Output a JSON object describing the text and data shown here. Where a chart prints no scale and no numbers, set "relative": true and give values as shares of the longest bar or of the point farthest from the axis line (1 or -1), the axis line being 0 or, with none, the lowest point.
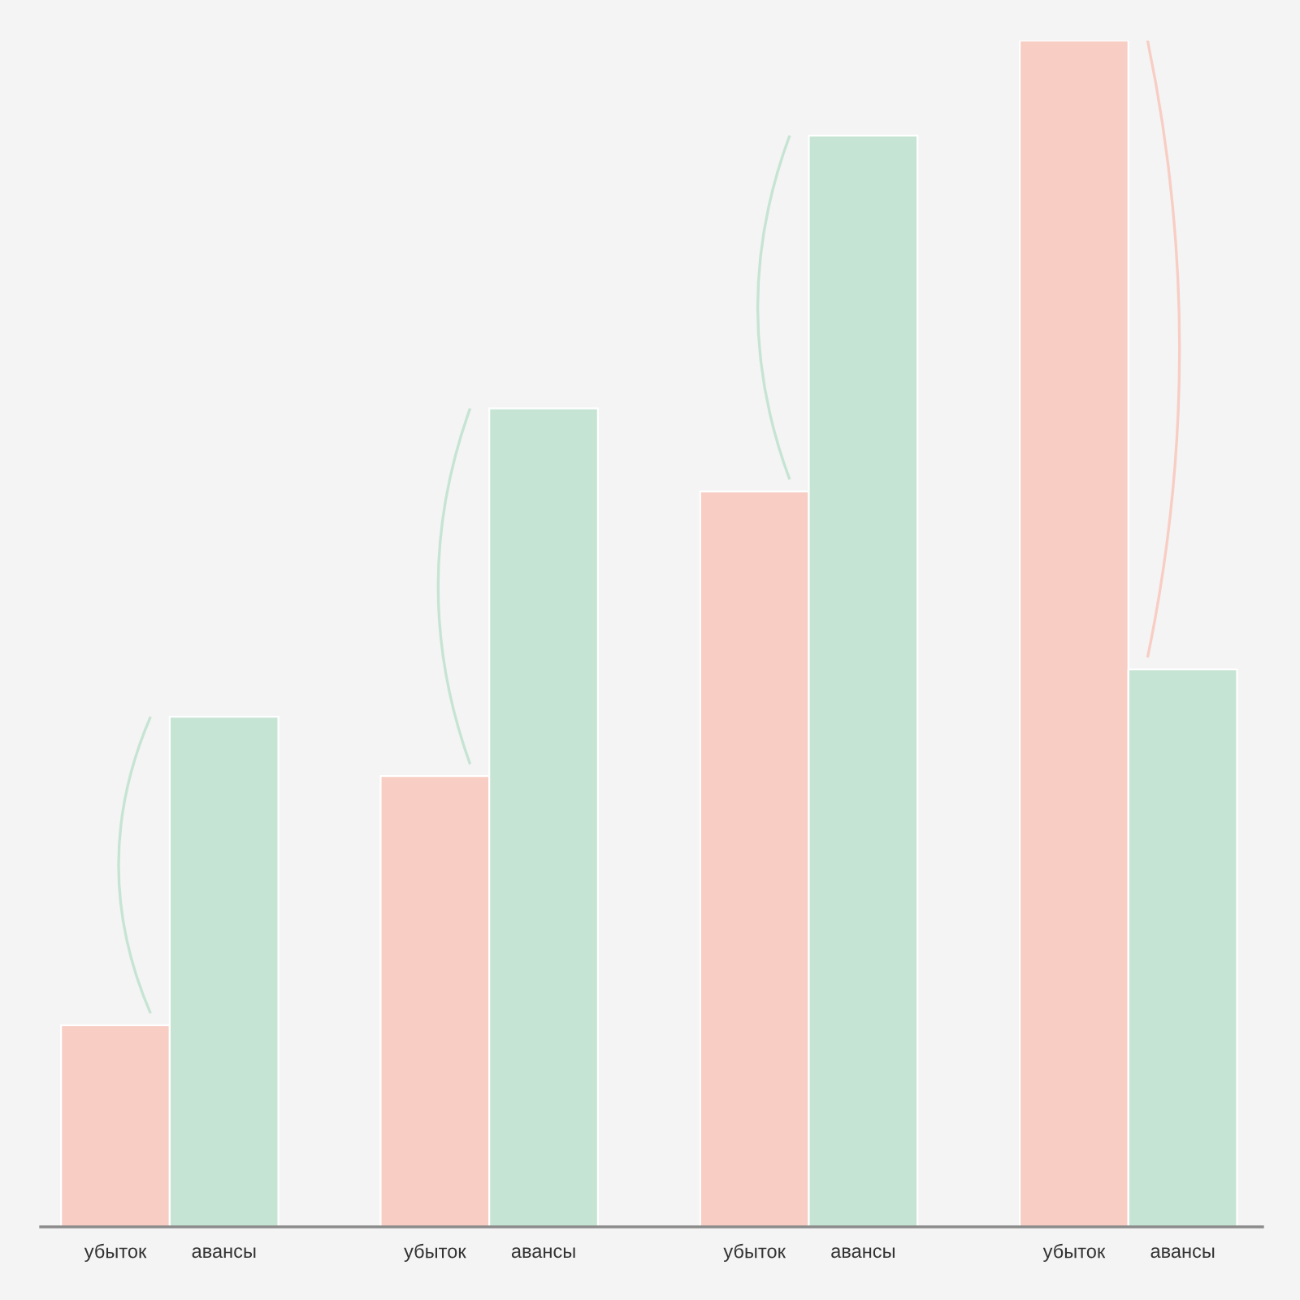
{
  "chart_data": {
    "type": "bar",
    "relative": true,
    "categories": [
      null,
      null,
      null,
      null
    ],
    "series": [
      {
        "name": "убыток",
        "color": "#f8cdc4",
        "values": [
          0.17,
          0.38,
          0.62,
          1
        ]
      },
      {
        "name": "авансы",
        "color": "#c6e4d3",
        "values": [
          0.43,
          0.69,
          0.92,
          0.47
        ]
      }
    ]
  }
}
